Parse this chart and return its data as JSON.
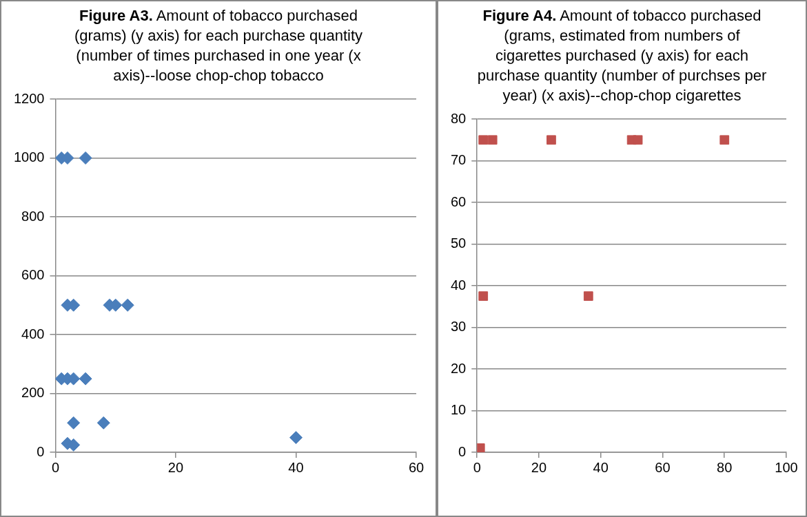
{
  "chart_data": [
    {
      "type": "scatter",
      "title": "Figure A3. Amount of tobacco purchased (grams) (y axis) for each purchase quantity (number of times purchased in one year  (x axis)--loose chop-chop tobacco",
      "series": [
        {
          "color": "#4a7ebb",
          "x": [
            1,
            2,
            5,
            2,
            3,
            9,
            10,
            12,
            1,
            2,
            3,
            5,
            3,
            8,
            2,
            3,
            40
          ],
          "values": [
            1000,
            1000,
            1000,
            500,
            500,
            500,
            500,
            500,
            250,
            250,
            250,
            250,
            100,
            100,
            30,
            25,
            50
          ]
        }
      ],
      "xlim": [
        0,
        60
      ],
      "xticks": [
        0,
        20,
        40,
        60
      ],
      "ylim": [
        0,
        1200
      ],
      "yticks": [
        0,
        200,
        400,
        600,
        800,
        1000,
        1200
      ],
      "grid": "y",
      "legend": false,
      "marker": "diamond"
    },
    {
      "type": "scatter",
      "title": "Figure A4. Amount of tobacco purchased  (grams, estimated from numbers of cigarettes purchased (y axis) for each purchase quantity (number of purchses per year) (x axis)--chop-chop cigarettes",
      "series": [
        {
          "color": "#c0504d",
          "x": [
            2,
            5,
            24,
            50,
            52,
            80,
            2,
            36,
            1
          ],
          "values": [
            75,
            75,
            75,
            75,
            75,
            75,
            37.5,
            37.5,
            1
          ]
        }
      ],
      "xlim": [
        0,
        100
      ],
      "xticks": [
        0,
        20,
        40,
        60,
        80,
        100
      ],
      "ylim": [
        0,
        80
      ],
      "yticks": [
        0,
        10,
        20,
        30,
        40,
        50,
        60,
        70,
        80
      ],
      "grid": "y",
      "legend": false,
      "marker": "square"
    }
  ]
}
